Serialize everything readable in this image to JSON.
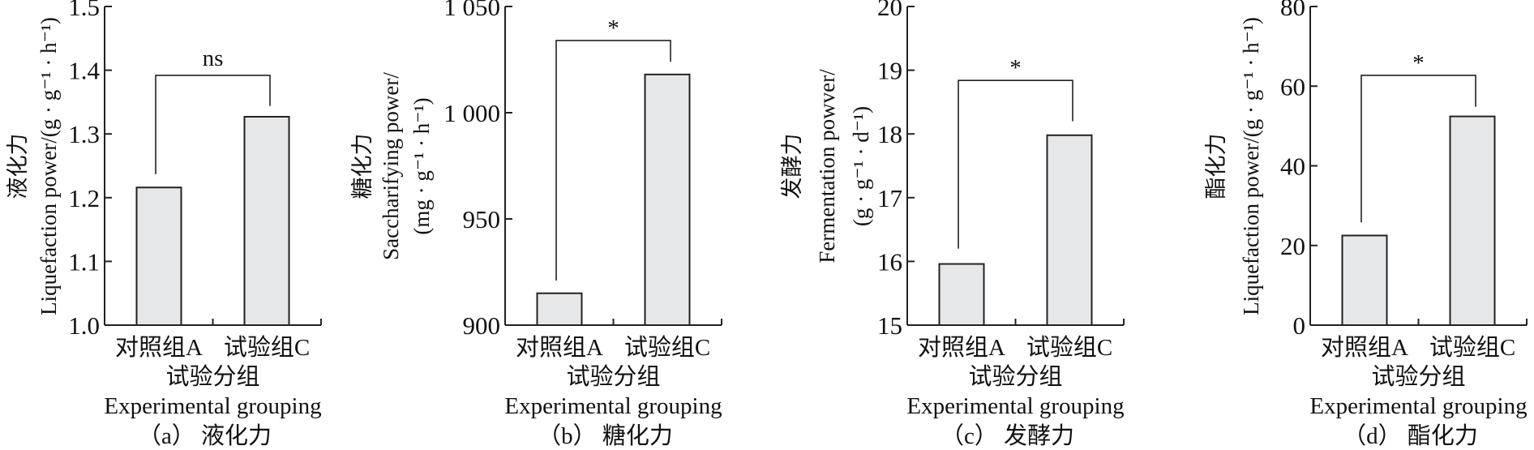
{
  "chart_data": [
    {
      "type": "bar",
      "caption": "（a） 液化力",
      "ylabel_lines": [
        "液化力",
        "Liquefaction power/(g · g⁻¹ · h⁻¹)"
      ],
      "xlabel_lines": [
        "试验分组",
        "Experimental grouping"
      ],
      "categories": [
        "对照组A",
        "试验组C"
      ],
      "values": [
        1.216,
        1.327
      ],
      "ylim": [
        1.0,
        1.5
      ],
      "yticks": [
        1.0,
        1.1,
        1.2,
        1.3,
        1.4,
        1.5
      ],
      "ytick_labels": [
        "1.0",
        "1.1",
        "1.2",
        "1.3",
        "1.4",
        "1.5"
      ],
      "significance": {
        "label": "ns",
        "bracket": 1.392,
        "legs": [
          1.237,
          1.344
        ]
      }
    },
    {
      "type": "bar",
      "caption": "（b） 糖化力",
      "ylabel_lines": [
        "糖化力",
        "Saccharifying power/",
        "(mg · g⁻¹ · h⁻¹)"
      ],
      "xlabel_lines": [
        "试验分组",
        "Experimental grouping"
      ],
      "categories": [
        "对照组A",
        "试验组C"
      ],
      "values": [
        915,
        1018
      ],
      "ylim": [
        900,
        1050
      ],
      "yticks": [
        900,
        950,
        1000,
        1050
      ],
      "ytick_labels": [
        "900",
        "950",
        "1 000",
        "1 050"
      ],
      "significance": {
        "label": "*",
        "bracket": 1034,
        "legs": [
          921,
          1024
        ]
      }
    },
    {
      "type": "bar",
      "caption": "（c） 发酵力",
      "ylabel_lines": [
        "发酵力",
        "Fermentation powver/",
        "(g · g⁻¹ · d⁻¹)"
      ],
      "xlabel_lines": [
        "试验分组",
        "Experimental grouping"
      ],
      "categories": [
        "对照组A",
        "试验组C"
      ],
      "values": [
        15.96,
        17.98
      ],
      "ylim": [
        15,
        20
      ],
      "yticks": [
        15,
        16,
        17,
        18,
        19,
        20
      ],
      "ytick_labels": [
        "15",
        "16",
        "17",
        "18",
        "19",
        "20"
      ],
      "significance": {
        "label": "*",
        "bracket": 18.84,
        "legs": [
          16.2,
          18.2
        ]
      }
    },
    {
      "type": "bar",
      "caption": "（d） 酯化力",
      "ylabel_lines": [
        "酯化力",
        "Liquefaction power/(g · g⁻¹ · h⁻¹)"
      ],
      "xlabel_lines": [
        "试验分组",
        "Experimental grouping"
      ],
      "categories": [
        "对照组A",
        "试验组C"
      ],
      "values": [
        22.5,
        52.4
      ],
      "ylim": [
        0,
        80
      ],
      "yticks": [
        0,
        20,
        40,
        60,
        80
      ],
      "ytick_labels": [
        "0",
        "20",
        "40",
        "60",
        "80"
      ],
      "significance": {
        "label": "*",
        "bracket": 62.7,
        "legs": [
          25.8,
          54.8
        ]
      }
    }
  ]
}
